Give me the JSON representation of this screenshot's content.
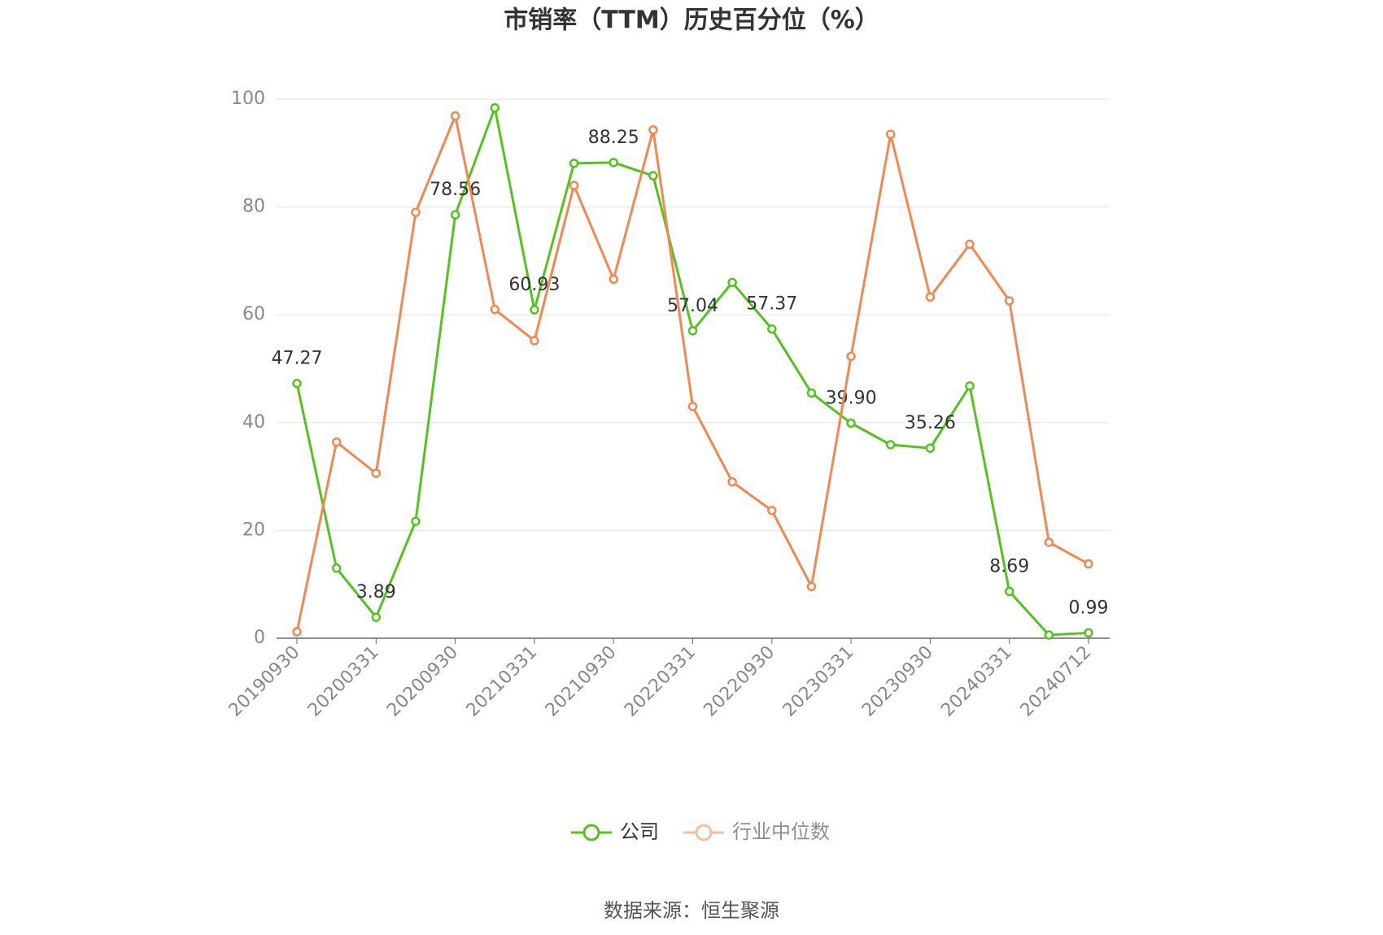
{
  "chart_data": {
    "type": "line",
    "title": "市销率（TTM）历史百分位（%）",
    "categories": [
      "20190930",
      null,
      "20200331",
      null,
      "20200930",
      null,
      "20210331",
      null,
      "20210930",
      null,
      "20220331",
      null,
      "20220930",
      null,
      "20230331",
      null,
      "20230930",
      null,
      "20240331",
      null,
      "20240712"
    ],
    "series": [
      {
        "name": "公司",
        "color": "#52c41a",
        "values": [
          47.27,
          13.0,
          3.89,
          21.7,
          78.56,
          98.4,
          60.93,
          88.1,
          88.25,
          85.8,
          57.04,
          66.0,
          57.37,
          45.5,
          39.9,
          35.9,
          35.26,
          46.8,
          8.69,
          0.6,
          0.99
        ],
        "value_labels": [
          "47.27",
          null,
          "3.89",
          null,
          "78.56",
          null,
          "60.93",
          null,
          "88.25",
          null,
          "57.04",
          null,
          "57.37",
          null,
          "39.90",
          null,
          "35.26",
          null,
          "8.69",
          null,
          "0.99"
        ]
      },
      {
        "name": "行业中位数",
        "color": "#f4874f",
        "values": [
          1.2,
          36.4,
          30.6,
          79.0,
          96.9,
          61.0,
          55.2,
          84.0,
          66.6,
          94.3,
          43.0,
          29.0,
          23.7,
          9.6,
          52.3,
          93.5,
          63.3,
          73.1,
          62.6,
          17.8,
          13.8
        ]
      }
    ],
    "ylim": [
      0,
      100
    ],
    "yticks": [
      0,
      20,
      40,
      60,
      80,
      100
    ],
    "grid": true,
    "source": "数据来源：恒生聚源"
  }
}
